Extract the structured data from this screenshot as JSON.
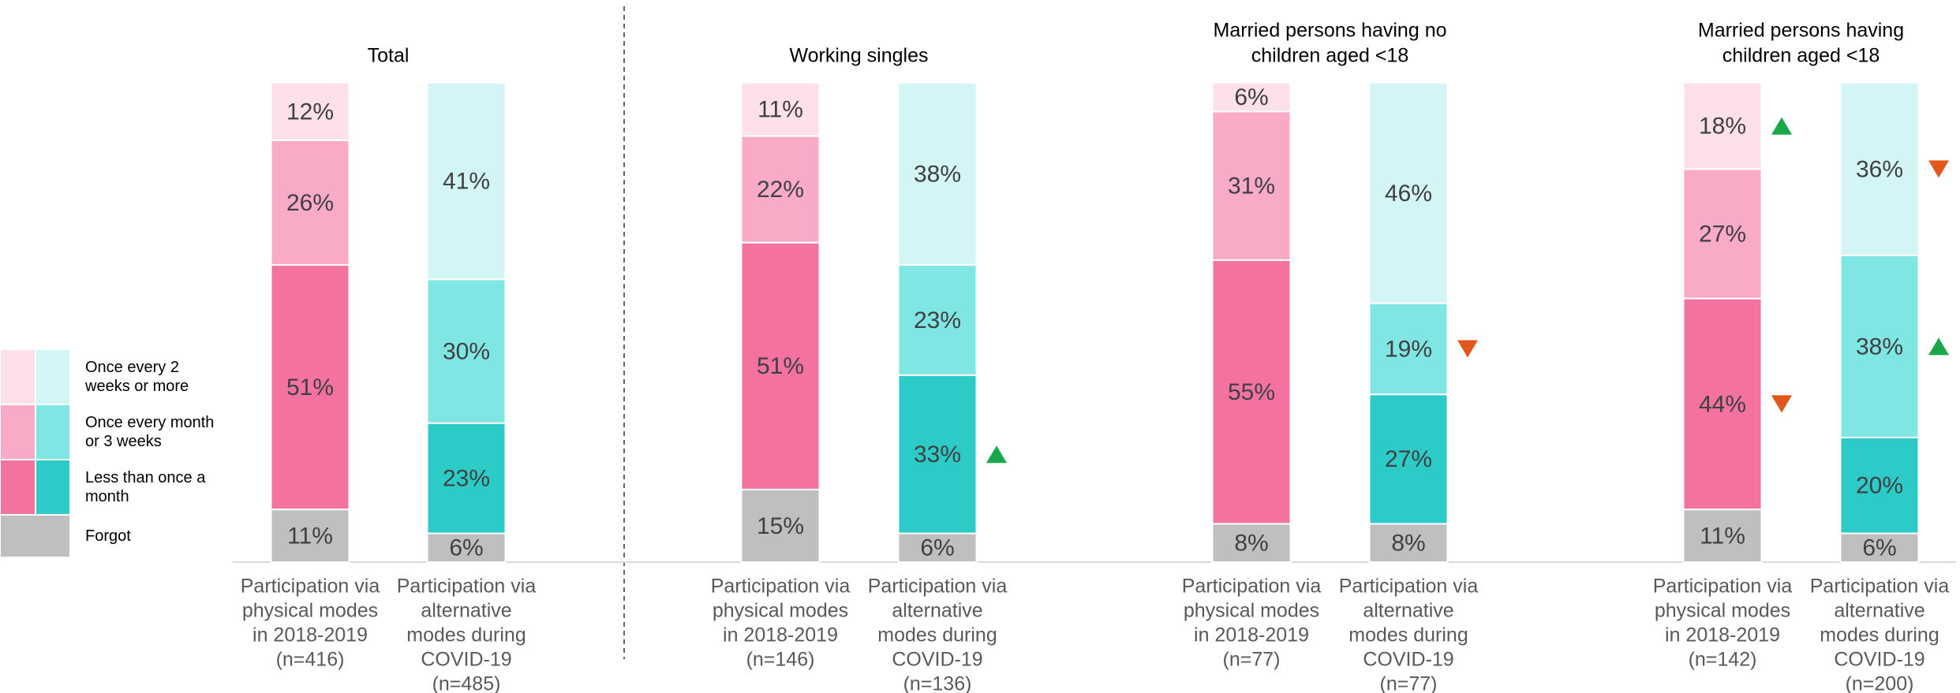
{
  "chart_data": [
    {
      "type": "stacked_bar_100",
      "title": [
        "Total"
      ],
      "categories": [
        [
          "Participation via",
          "physical modes",
          "in 2018-2019",
          "(n=416)"
        ],
        [
          "Participation via",
          "alternative",
          "modes during",
          "COVID-19",
          "(n=485)"
        ]
      ],
      "series": [
        {
          "name": "Forgot",
          "colors": [
            "#bfbfbf",
            "#bfbfbf"
          ],
          "values": [
            11,
            6
          ],
          "value_labels": [
            "11%",
            "6%"
          ]
        },
        {
          "name": "Less than once a month",
          "colors": [
            "#f3729f",
            "#2ccbc8"
          ],
          "values": [
            51,
            23
          ],
          "value_labels": [
            "51%",
            "23%"
          ]
        },
        {
          "name": "Once every month or 3 weeks",
          "colors": [
            "#f9aac7",
            "#7fe6e3"
          ],
          "values": [
            26,
            30
          ],
          "value_labels": [
            "26%",
            "30%"
          ]
        },
        {
          "name": "Once every 2 weeks or more",
          "colors": [
            "#fde0ea",
            "#d4f5f5"
          ],
          "values": [
            12,
            41
          ],
          "value_labels": [
            "12%",
            "41%"
          ]
        }
      ]
    },
    {
      "type": "stacked_bar_100",
      "title": [
        "Working singles"
      ],
      "categories": [
        [
          "Participation via",
          "physical modes",
          "in 2018-2019",
          "(n=146)"
        ],
        [
          "Participation via",
          "alternative",
          "modes during",
          "COVID-19",
          "(n=136)"
        ]
      ],
      "series": [
        {
          "name": "Forgot",
          "colors": [
            "#bfbfbf",
            "#bfbfbf"
          ],
          "values": [
            15,
            6
          ],
          "value_labels": [
            "15%",
            "6%"
          ]
        },
        {
          "name": "Less than once a month",
          "colors": [
            "#f3729f",
            "#2ccbc8"
          ],
          "values": [
            51,
            33
          ],
          "value_labels": [
            "51%",
            "33%"
          ],
          "significance": [
            null,
            "up"
          ]
        },
        {
          "name": "Once every month or 3 weeks",
          "colors": [
            "#f9aac7",
            "#7fe6e3"
          ],
          "values": [
            22,
            23
          ],
          "value_labels": [
            "22%",
            "23%"
          ]
        },
        {
          "name": "Once every 2 weeks or more",
          "colors": [
            "#fde0ea",
            "#d4f5f5"
          ],
          "values": [
            11,
            38
          ],
          "value_labels": [
            "11%",
            "38%"
          ]
        }
      ]
    },
    {
      "type": "stacked_bar_100",
      "title": [
        "Married persons having no",
        "children aged <18"
      ],
      "categories": [
        [
          "Participation via",
          "physical modes",
          "in 2018-2019",
          "(n=77)"
        ],
        [
          "Participation via",
          "alternative",
          "modes during",
          "COVID-19",
          "(n=77)"
        ]
      ],
      "series": [
        {
          "name": "Forgot",
          "colors": [
            "#bfbfbf",
            "#bfbfbf"
          ],
          "values": [
            8,
            8
          ],
          "value_labels": [
            "8%",
            "8%"
          ]
        },
        {
          "name": "Less than once a month",
          "colors": [
            "#f3729f",
            "#2ccbc8"
          ],
          "values": [
            55,
            27
          ],
          "value_labels": [
            "55%",
            "27%"
          ]
        },
        {
          "name": "Once every month or 3 weeks",
          "colors": [
            "#f9aac7",
            "#7fe6e3"
          ],
          "values": [
            31,
            19
          ],
          "value_labels": [
            "31%",
            "19%"
          ],
          "significance": [
            null,
            "down"
          ]
        },
        {
          "name": "Once every 2 weeks or more",
          "colors": [
            "#fde0ea",
            "#d4f5f5"
          ],
          "values": [
            6,
            46
          ],
          "value_labels": [
            "6%",
            "46%"
          ]
        }
      ]
    },
    {
      "type": "stacked_bar_100",
      "title": [
        "Married persons having",
        "children aged <18"
      ],
      "categories": [
        [
          "Participation via",
          "physical modes",
          "in 2018-2019",
          "(n=142)"
        ],
        [
          "Participation via",
          "alternative",
          "modes during",
          "COVID-19",
          "(n=200)"
        ]
      ],
      "series": [
        {
          "name": "Forgot",
          "colors": [
            "#bfbfbf",
            "#bfbfbf"
          ],
          "values": [
            11,
            6
          ],
          "value_labels": [
            "11%",
            "6%"
          ]
        },
        {
          "name": "Less than once a month",
          "colors": [
            "#f3729f",
            "#2ccbc8"
          ],
          "values": [
            44,
            20
          ],
          "value_labels": [
            "44%",
            "20%"
          ],
          "significance": [
            "down",
            null
          ]
        },
        {
          "name": "Once every month or 3 weeks",
          "colors": [
            "#f9aac7",
            "#7fe6e3"
          ],
          "values": [
            27,
            38
          ],
          "value_labels": [
            "27%",
            "38%"
          ],
          "significance": [
            null,
            "up"
          ]
        },
        {
          "name": "Once every 2 weeks or more",
          "colors": [
            "#fde0ea",
            "#d4f5f5"
          ],
          "values": [
            18,
            36
          ],
          "value_labels": [
            "18%",
            "36%"
          ],
          "significance": [
            "up",
            "down"
          ]
        }
      ]
    }
  ]
}
